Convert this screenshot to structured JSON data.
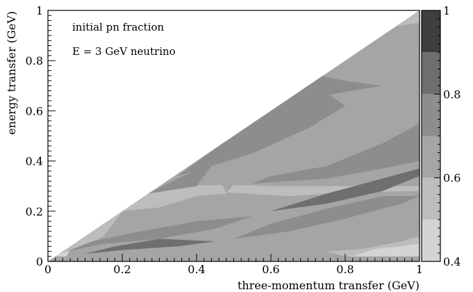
{
  "chart_data": {
    "type": "heatmap",
    "annotations": [
      "initial pn fraction",
      "E = 3 GeV neutrino"
    ],
    "xlabel": "three-momentum transfer (GeV)",
    "ylabel": "energy transfer (GeV)",
    "xlim": [
      0,
      1
    ],
    "ylim": [
      0,
      1
    ],
    "x_ticks": [
      {
        "value": 0,
        "label": "0"
      },
      {
        "value": 0.2,
        "label": "0.2"
      },
      {
        "value": 0.4,
        "label": "0.4"
      },
      {
        "value": 0.6,
        "label": "0.6"
      },
      {
        "value": 0.8,
        "label": "0.8"
      },
      {
        "value": 1,
        "label": "1"
      }
    ],
    "y_ticks": [
      {
        "value": 0,
        "label": "0"
      },
      {
        "value": 0.2,
        "label": "0.2"
      },
      {
        "value": 0.4,
        "label": "0.4"
      },
      {
        "value": 0.6,
        "label": "0.6"
      },
      {
        "value": 0.8,
        "label": "0.8"
      },
      {
        "value": 1,
        "label": "1"
      }
    ],
    "colorbar": {
      "range": [
        0.4,
        1.0
      ],
      "levels": [
        {
          "from": 0.4,
          "to": 0.5,
          "color": "#d4d4d4"
        },
        {
          "from": 0.5,
          "to": 0.6,
          "color": "#bdbdbd"
        },
        {
          "from": 0.6,
          "to": 0.7,
          "color": "#a5a5a5"
        },
        {
          "from": 0.7,
          "to": 0.8,
          "color": "#8d8d8d"
        },
        {
          "from": 0.8,
          "to": 0.9,
          "color": "#6f6f6f"
        },
        {
          "from": 0.9,
          "to": 1.0,
          "color": "#3e3e3e"
        }
      ],
      "ticks": [
        {
          "value": 0.4,
          "label": "0.4"
        },
        {
          "value": 0.6,
          "label": "0.6"
        },
        {
          "value": 0.8,
          "label": "0.8"
        },
        {
          "value": 1.0,
          "label": "1"
        }
      ]
    },
    "kinematic_boundary": "energy transfer <= three-momentum transfer",
    "regions": [
      {
        "level": 0.45,
        "points": [
          [
            0.02,
            0.02
          ],
          [
            0.05,
            0.02
          ],
          [
            0.08,
            0.1
          ],
          [
            0.03,
            0.03
          ]
        ]
      },
      {
        "level": 0.55,
        "points": [
          [
            0.03,
            0.03
          ],
          [
            0.08,
            0.05
          ],
          [
            0.15,
            0.1
          ],
          [
            0.2,
            0.2
          ],
          [
            0.15,
            0.15
          ],
          [
            0.08,
            0.08
          ]
        ]
      },
      {
        "level": 0.65,
        "points": [
          [
            0.06,
            0.03
          ],
          [
            0.3,
            0.13
          ],
          [
            0.55,
            0.19
          ],
          [
            0.6,
            0.22
          ],
          [
            0.3,
            0.18
          ],
          [
            0.18,
            0.1
          ]
        ]
      },
      {
        "level": 0.55,
        "points": [
          [
            0.2,
            0.2
          ],
          [
            0.3,
            0.215
          ],
          [
            0.4,
            0.26
          ],
          [
            0.48,
            0.27
          ],
          [
            0.47,
            0.305
          ],
          [
            0.35,
            0.3
          ],
          [
            0.27,
            0.27
          ]
        ]
      },
      {
        "level": 0.55,
        "points": [
          [
            0.48,
            0.275
          ],
          [
            0.65,
            0.26
          ],
          [
            0.8,
            0.275
          ],
          [
            1.0,
            0.28
          ],
          [
            1.0,
            0.3
          ],
          [
            0.8,
            0.3
          ],
          [
            0.6,
            0.3
          ],
          [
            0.5,
            0.305
          ]
        ]
      },
      {
        "level": 0.75,
        "points": [
          [
            0.27,
            0.27
          ],
          [
            0.4,
            0.3
          ],
          [
            0.45,
            0.4
          ],
          [
            0.35,
            0.33
          ]
        ]
      },
      {
        "level": 0.75,
        "points": [
          [
            0.35,
            0.34
          ],
          [
            0.55,
            0.43
          ],
          [
            0.7,
            0.53
          ],
          [
            0.8,
            0.62
          ],
          [
            0.75,
            0.67
          ],
          [
            0.55,
            0.6
          ],
          [
            0.45,
            0.45
          ]
        ]
      },
      {
        "level": 0.75,
        "points": [
          [
            0.55,
            0.31
          ],
          [
            0.75,
            0.33
          ],
          [
            0.9,
            0.37
          ],
          [
            1.0,
            0.4
          ],
          [
            1.0,
            0.55
          ],
          [
            0.9,
            0.47
          ],
          [
            0.75,
            0.38
          ],
          [
            0.6,
            0.34
          ]
        ]
      },
      {
        "level": 0.75,
        "points": [
          [
            0.05,
            0.04
          ],
          [
            0.15,
            0.07
          ],
          [
            0.3,
            0.09
          ],
          [
            0.45,
            0.13
          ],
          [
            0.55,
            0.18
          ],
          [
            0.4,
            0.16
          ],
          [
            0.25,
            0.12
          ],
          [
            0.12,
            0.08
          ]
        ]
      },
      {
        "level": 0.85,
        "points": [
          [
            0.1,
            0.03
          ],
          [
            0.2,
            0.045
          ],
          [
            0.35,
            0.06
          ],
          [
            0.45,
            0.08
          ],
          [
            0.3,
            0.09
          ],
          [
            0.18,
            0.06
          ]
        ]
      },
      {
        "level": 0.75,
        "points": [
          [
            0.5,
            0.09
          ],
          [
            0.65,
            0.12
          ],
          [
            0.8,
            0.17
          ],
          [
            0.95,
            0.23
          ],
          [
            1.0,
            0.26
          ],
          [
            0.9,
            0.26
          ],
          [
            0.75,
            0.21
          ],
          [
            0.6,
            0.15
          ]
        ]
      },
      {
        "level": 0.85,
        "points": [
          [
            0.6,
            0.2
          ],
          [
            0.75,
            0.23
          ],
          [
            0.9,
            0.28
          ],
          [
            1.0,
            0.34
          ],
          [
            1.0,
            0.37
          ],
          [
            0.9,
            0.33
          ],
          [
            0.75,
            0.27
          ]
        ]
      },
      {
        "level": 0.55,
        "points": [
          [
            0.75,
            0.04
          ],
          [
            0.85,
            0.05
          ],
          [
            0.95,
            0.08
          ],
          [
            1.0,
            0.1
          ],
          [
            1.0,
            0.02
          ],
          [
            0.9,
            0.02
          ],
          [
            0.8,
            0.02
          ]
        ]
      },
      {
        "level": 0.45,
        "points": [
          [
            0.82,
            0.02
          ],
          [
            0.9,
            0.02
          ],
          [
            1.0,
            0.02
          ],
          [
            1.0,
            0.07
          ],
          [
            0.95,
            0.06
          ],
          [
            0.88,
            0.05
          ]
        ]
      },
      {
        "level": 0.55,
        "points": [
          [
            0.8,
            0.92
          ],
          [
            0.9,
            0.93
          ],
          [
            1.0,
            0.95
          ],
          [
            1.0,
            1.0
          ],
          [
            0.9,
            0.92
          ]
        ]
      },
      {
        "level": 0.75,
        "points": [
          [
            0.45,
            0.62
          ],
          [
            0.5,
            0.68
          ],
          [
            0.6,
            0.72
          ],
          [
            0.7,
            0.75
          ],
          [
            0.8,
            0.72
          ],
          [
            0.9,
            0.7
          ],
          [
            0.7,
            0.65
          ],
          [
            0.55,
            0.6
          ]
        ]
      }
    ]
  }
}
